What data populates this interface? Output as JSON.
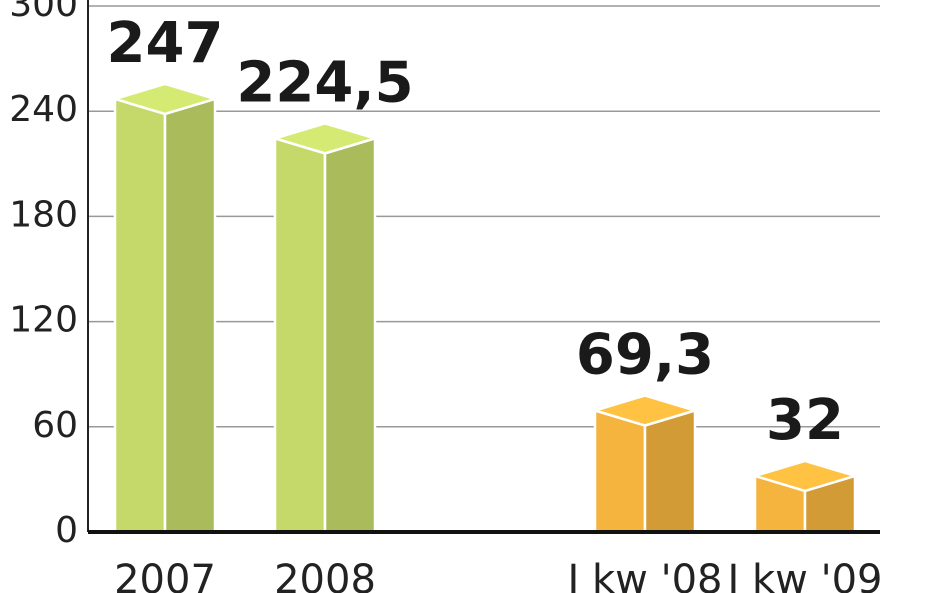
{
  "chart_data": {
    "type": "bar3d",
    "categories": [
      "2007",
      "2008",
      "I kw '08",
      "I kw '09"
    ],
    "values": [
      247,
      224.5,
      69.3,
      32
    ],
    "value_labels": [
      "247",
      "224,5",
      "69,3",
      "32"
    ],
    "colors": [
      "#c4d96a",
      "#c4d96a",
      "#f4b43e",
      "#f4b43e"
    ],
    "ylim": [
      0,
      300
    ],
    "yticks": [
      0,
      60,
      120,
      180,
      240,
      300
    ],
    "grid": true
  }
}
